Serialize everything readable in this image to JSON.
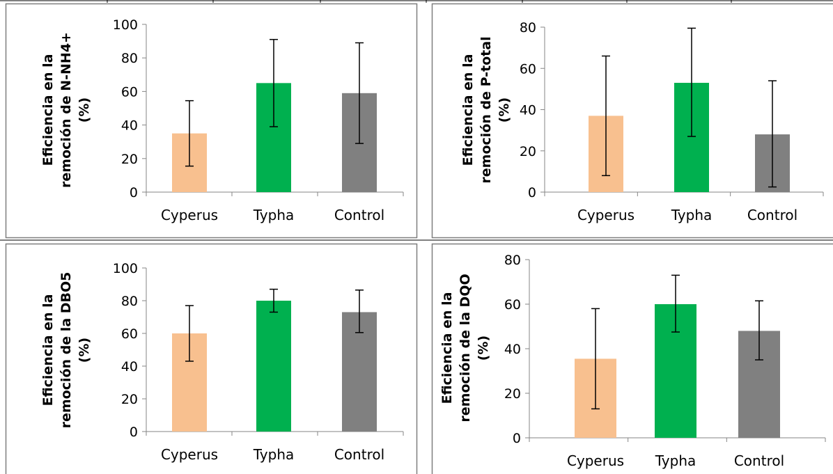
{
  "chart_data": [
    {
      "type": "bar",
      "categories": [
        "Cyperus",
        "Typha",
        "Control"
      ],
      "values": [
        35,
        65,
        59
      ],
      "error_bars": [
        [
          15.5,
          54.5
        ],
        [
          39,
          91
        ],
        [
          29,
          89
        ]
      ],
      "colors": [
        "#f8c08f",
        "#00b04f",
        "#808080"
      ],
      "ylim": [
        0,
        100
      ],
      "yticks": [
        0,
        20,
        40,
        60,
        80,
        100
      ],
      "ylabel": [
        "Eficiencia en la",
        "remoción de N-NH4+",
        "(%)"
      ],
      "xlabel": "",
      "title": "",
      "grid": false,
      "legend": "none"
    },
    {
      "type": "bar",
      "categories": [
        "Cyperus",
        "Typha",
        "Control"
      ],
      "values": [
        37,
        53,
        28
      ],
      "error_bars": [
        [
          8,
          66
        ],
        [
          27,
          79.5
        ],
        [
          2.5,
          54
        ]
      ],
      "colors": [
        "#f8c08f",
        "#00b04f",
        "#808080"
      ],
      "ylim": [
        0,
        80
      ],
      "yticks": [
        0,
        20,
        40,
        60,
        80
      ],
      "ylabel": [
        "Eficiencia en la",
        "remoción de P-total",
        "(%)"
      ],
      "xlabel": "",
      "title": "",
      "grid": false,
      "legend": "none"
    },
    {
      "type": "bar",
      "categories": [
        "Cyperus",
        "Typha",
        "Control"
      ],
      "values": [
        60,
        80,
        73
      ],
      "error_bars": [
        [
          43,
          77
        ],
        [
          73,
          87
        ],
        [
          60.5,
          86.5
        ]
      ],
      "colors": [
        "#f8c08f",
        "#00b04f",
        "#808080"
      ],
      "ylim": [
        0,
        100
      ],
      "yticks": [
        0,
        20,
        40,
        60,
        80,
        100
      ],
      "ylabel": [
        "Eficiencia en la",
        "remoción de la DBO5",
        "(%)"
      ],
      "xlabel": "",
      "title": "",
      "grid": false,
      "legend": "none"
    },
    {
      "type": "bar",
      "categories": [
        "Cyperus",
        "Typha",
        "Control"
      ],
      "values": [
        35.5,
        60,
        48
      ],
      "error_bars": [
        [
          13,
          58
        ],
        [
          47.5,
          73
        ],
        [
          35,
          61.5
        ]
      ],
      "colors": [
        "#f8c08f",
        "#00b04f",
        "#808080"
      ],
      "ylim": [
        0,
        80
      ],
      "yticks": [
        0,
        20,
        40,
        60,
        80
      ],
      "ylabel": [
        "Eficiencia en la",
        "remoción de la DQO",
        "(%)"
      ],
      "xlabel": "",
      "title": "",
      "grid": false,
      "legend": "none"
    }
  ]
}
